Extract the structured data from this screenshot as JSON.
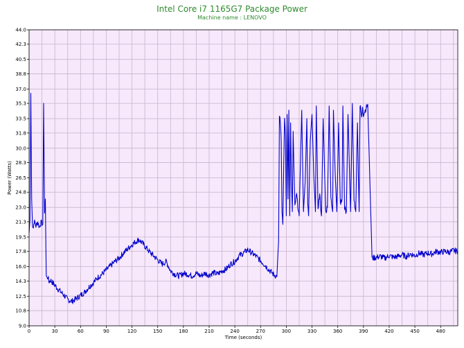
{
  "chart_data": {
    "type": "line",
    "title": "Intel Core i7 1165G7 Package Power",
    "subtitle": "Machine name : LENOVO",
    "xlabel": "Time (seconds)",
    "ylabel": "Power (Watts)",
    "xlim": [
      0,
      500
    ],
    "ylim": [
      9.0,
      44.0
    ],
    "xticks": [
      0,
      30,
      60,
      90,
      120,
      150,
      180,
      210,
      240,
      270,
      300,
      330,
      360,
      390,
      420,
      450,
      480
    ],
    "yticks": [
      "9.0",
      "10.8",
      "12.5",
      "14.3",
      "16.0",
      "17.8",
      "19.5",
      "21.3",
      "23.0",
      "24.8",
      "26.5",
      "28.3",
      "30.0",
      "31.8",
      "33.5",
      "35.3",
      "37.0",
      "38.8",
      "40.5",
      "42.3",
      "44.0"
    ],
    "grid": true,
    "background_color": "#f7e8fb",
    "grid_color": "#c9b4cc",
    "series": [
      {
        "color": "#0000cc",
        "x": [
          0,
          1,
          2,
          3,
          4,
          5,
          6,
          8,
          10,
          12,
          14,
          16,
          17,
          18,
          19,
          20,
          21,
          22,
          23,
          25,
          30,
          35,
          40,
          45,
          50,
          55,
          60,
          65,
          70,
          75,
          80,
          85,
          90,
          95,
          100,
          105,
          110,
          115,
          120,
          125,
          128,
          132,
          136,
          140,
          145,
          150,
          155,
          160,
          165,
          170,
          175,
          180,
          185,
          190,
          195,
          200,
          205,
          210,
          215,
          220,
          225,
          230,
          235,
          240,
          245,
          250,
          255,
          260,
          265,
          270,
          275,
          280,
          285,
          289,
          291,
          292,
          293,
          294,
          295,
          296,
          297,
          298,
          299,
          300,
          301,
          302,
          303,
          304,
          305,
          306,
          307,
          308,
          310,
          312,
          315,
          318,
          320,
          322,
          324,
          325,
          326,
          328,
          330,
          332,
          334,
          335,
          337,
          339,
          341,
          343,
          345,
          346,
          348,
          350,
          352,
          354,
          355,
          357,
          359,
          361,
          363,
          365,
          366,
          368,
          370,
          372,
          374,
          375,
          377,
          379,
          381,
          383,
          384,
          385,
          386,
          387,
          388,
          389,
          390,
          395,
          400,
          405,
          410,
          415,
          420,
          425,
          430,
          435,
          440,
          445,
          450,
          455,
          460,
          465,
          470,
          475,
          480,
          485,
          490,
          495,
          500
        ],
        "y": [
          20.0,
          21.5,
          36.5,
          24.0,
          21.0,
          20.6,
          21.4,
          20.8,
          21.3,
          20.7,
          21.2,
          21.0,
          35.3,
          22.0,
          24.0,
          15.0,
          14.6,
          14.8,
          14.2,
          14.4,
          13.8,
          13.2,
          12.7,
          12.1,
          11.9,
          12.2,
          12.6,
          13.0,
          13.6,
          14.1,
          14.7,
          15.1,
          15.6,
          16.1,
          16.6,
          17.0,
          17.6,
          18.1,
          18.6,
          19.0,
          19.2,
          18.8,
          18.3,
          17.8,
          17.3,
          16.8,
          16.3,
          16.6,
          15.5,
          15.1,
          14.9,
          15.2,
          15.1,
          14.9,
          15.2,
          14.9,
          15.2,
          15.0,
          15.3,
          15.1,
          15.5,
          15.7,
          16.3,
          16.6,
          17.3,
          17.6,
          18.0,
          17.6,
          17.2,
          16.7,
          16.2,
          15.6,
          15.1,
          14.8,
          19.0,
          34.0,
          33.0,
          31.0,
          22.5,
          21.0,
          28.0,
          33.5,
          31.5,
          22.0,
          34.0,
          24.0,
          34.5,
          22.0,
          33.0,
          26.5,
          22.5,
          32.0,
          23.0,
          24.5,
          22.0,
          34.5,
          22.5,
          26.0,
          33.5,
          23.0,
          22.0,
          31.0,
          34.0,
          27.0,
          22.5,
          35.0,
          23.0,
          24.5,
          22.0,
          33.5,
          26.0,
          22.5,
          23.0,
          35.0,
          24.0,
          22.5,
          34.5,
          27.0,
          22.5,
          33.0,
          23.5,
          24.0,
          35.0,
          23.0,
          22.5,
          34.0,
          26.0,
          22.5,
          35.3,
          24.0,
          22.5,
          33.0,
          27.0,
          22.5,
          35.0,
          34.5,
          33.5,
          35.0,
          34.0,
          35.2,
          17.0,
          17.1,
          17.2,
          17.0,
          17.3,
          17.1,
          17.2,
          17.4,
          17.2,
          17.5,
          17.3,
          17.6,
          17.4,
          17.6,
          17.5,
          17.8,
          17.7,
          17.8,
          17.7,
          17.9,
          17.8
        ]
      }
    ]
  }
}
